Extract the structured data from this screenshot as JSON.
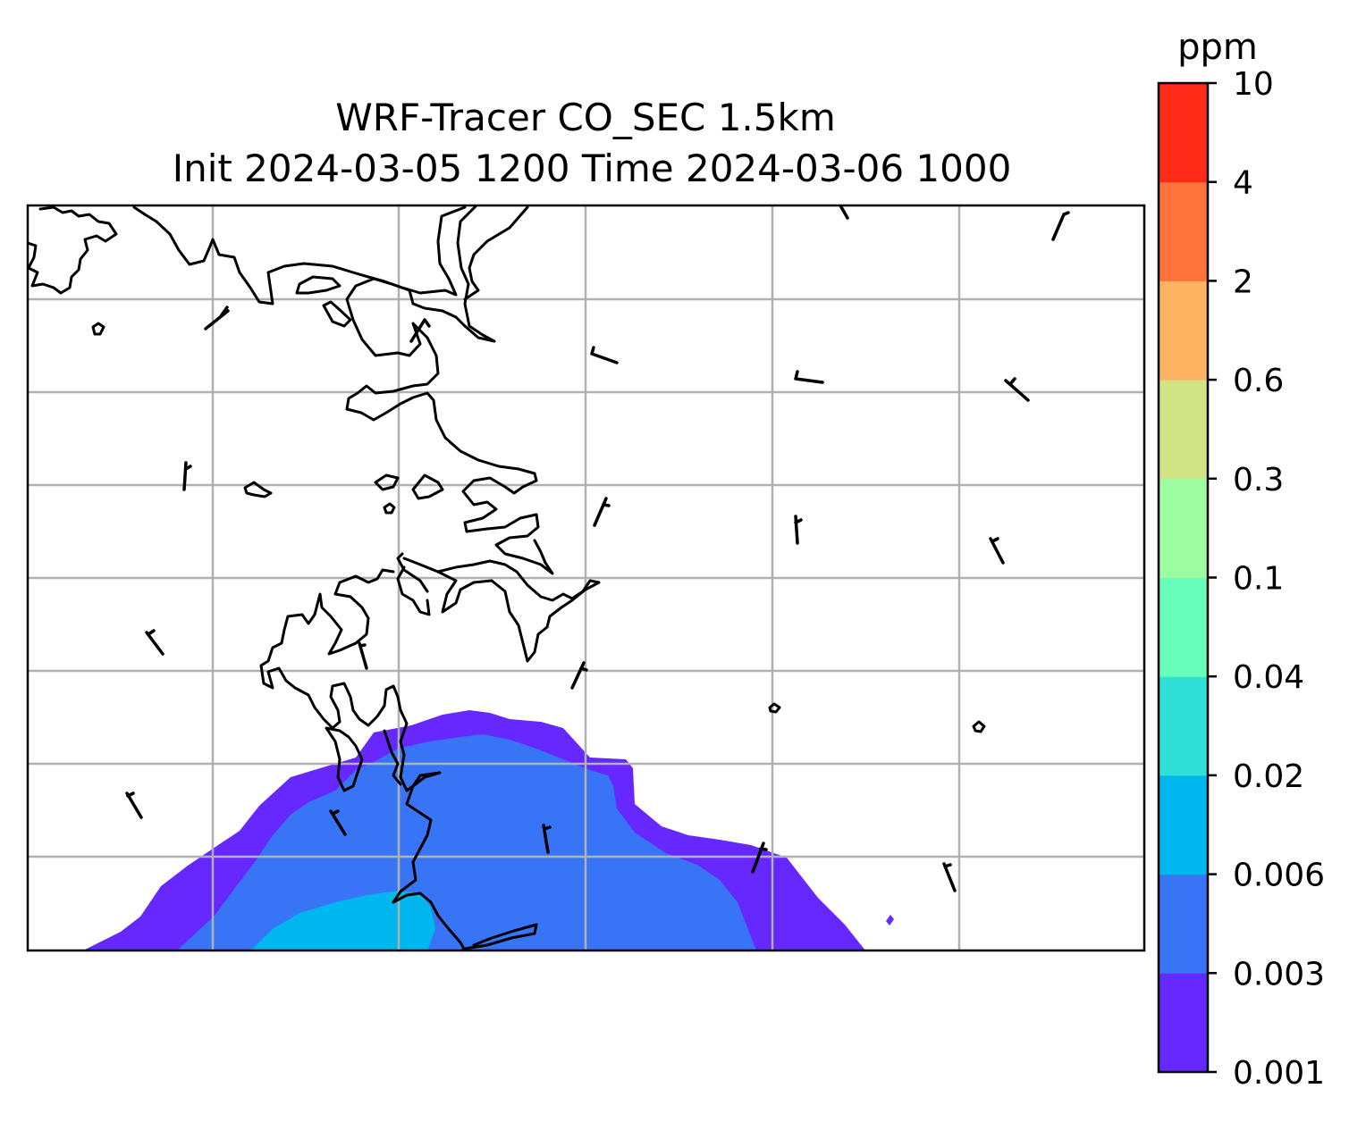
{
  "title": {
    "line1": "WRF-Tracer CO_SEC 1.5km",
    "line2": "Init 2024-03-05 1200 Time 2024-03-06 1000"
  },
  "colorbar": {
    "units": "ppm",
    "levels": [
      "0.001",
      "0.003",
      "0.006",
      "0.02",
      "0.04",
      "0.1",
      "0.3",
      "0.6",
      "2",
      "4",
      "10"
    ],
    "colors": [
      "#6628ff",
      "#3874f6",
      "#00b6ee",
      "#30e0d7",
      "#69fdbc",
      "#9cfea0",
      "#d1e384",
      "#feb362",
      "#fe733b",
      "#ff2a17"
    ]
  },
  "map": {
    "fields": [
      {
        "level": "0.001",
        "color": "#6628ff"
      },
      {
        "level": "0.003",
        "color": "#3874f6"
      },
      {
        "level": "0.006",
        "color": "#00b6ee"
      }
    ],
    "coastline_color": "#000000",
    "gridline_color": "#b0b0b0",
    "wind_barbs": "black"
  }
}
